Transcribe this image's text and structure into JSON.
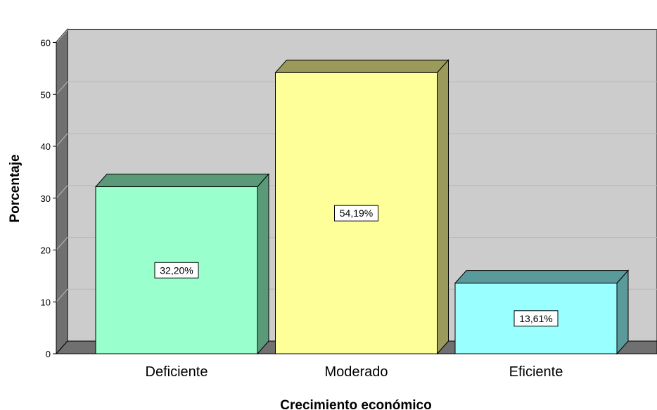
{
  "chart_data": {
    "type": "bar",
    "title": "",
    "xlabel": "Crecimiento económico",
    "ylabel": "Porcentaje",
    "categories": [
      "Deficiente",
      "Moderado",
      "Eficiente"
    ],
    "values": [
      32.2,
      54.19,
      13.61
    ],
    "data_labels": [
      "32,20%",
      "54,19%",
      "13,61%"
    ],
    "ylim": [
      0,
      60
    ],
    "yticks": [
      0,
      10,
      20,
      30,
      40,
      50,
      60
    ],
    "grid": true,
    "legend": "none",
    "style": "3d",
    "colors": {
      "plot_back": "#cccccc",
      "wall_side": "#707070",
      "floor": "#707070",
      "grid": "#b8b8b8",
      "bars": [
        {
          "front": "#99ffcc",
          "top": "#5a9a78",
          "side": "#5a9a78"
        },
        {
          "front": "#ffff99",
          "top": "#9a9a5a",
          "side": "#9a9a5a"
        },
        {
          "front": "#99ffff",
          "top": "#5a9a9a",
          "side": "#5a9a9a"
        }
      ]
    }
  }
}
